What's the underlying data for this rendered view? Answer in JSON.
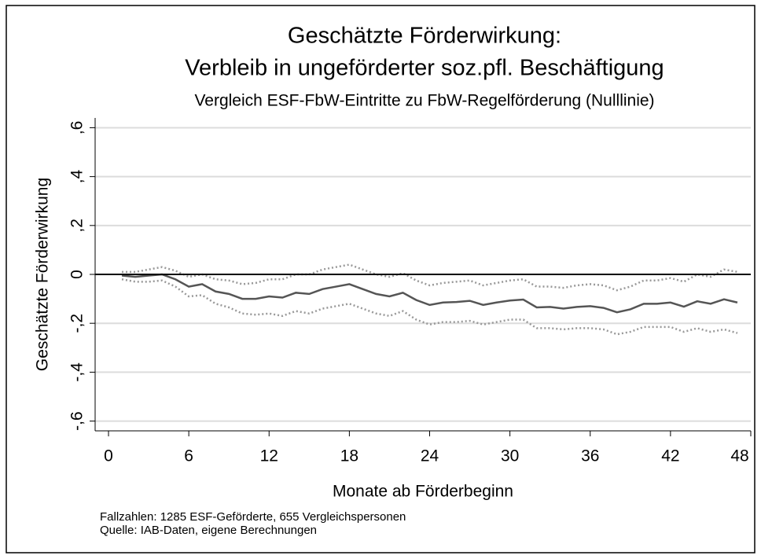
{
  "chart_data": {
    "type": "line",
    "title": [
      "Geschätzte Förderwirkung:",
      "Verbleib in ungeförderter soz.pfl. Beschäftigung"
    ],
    "subtitle": "Vergleich ESF-FbW-Eintritte zu FbW-Regelförderung (Nulllinie)",
    "x_label": "Monate ab Förderbeginn",
    "y_label": "Geschätzte Förderwirkung",
    "notes": [
      "Fallzahlen: 1285 ESF-Geförderte, 655 Vergleichspersonen",
      "Quelle: IAB-Daten, eigene Berechnungen"
    ],
    "x": [
      1,
      2,
      3,
      4,
      5,
      6,
      7,
      8,
      9,
      10,
      11,
      12,
      13,
      14,
      15,
      16,
      17,
      18,
      19,
      20,
      21,
      22,
      23,
      24,
      25,
      26,
      27,
      28,
      29,
      30,
      31,
      32,
      33,
      34,
      35,
      36,
      37,
      38,
      39,
      40,
      41,
      42,
      43,
      44,
      45,
      46,
      47
    ],
    "series": [
      {
        "color": "#555555",
        "dashed": false,
        "values": [
          -0.005,
          -0.01,
          -0.005,
          0,
          -0.02,
          -0.05,
          -0.04,
          -0.07,
          -0.08,
          -0.1,
          -0.1,
          -0.09,
          -0.095,
          -0.075,
          -0.08,
          -0.06,
          -0.05,
          -0.04,
          -0.06,
          -0.08,
          -0.09,
          -0.075,
          -0.105,
          -0.125,
          -0.115,
          -0.113,
          -0.108,
          -0.125,
          -0.115,
          -0.107,
          -0.103,
          -0.135,
          -0.133,
          -0.14,
          -0.133,
          -0.13,
          -0.137,
          -0.155,
          -0.143,
          -0.12,
          -0.12,
          -0.115,
          -0.132,
          -0.11,
          -0.12,
          -0.102,
          -0.115
        ]
      },
      {
        "color": "#999999",
        "dashed": true,
        "values": [
          0.01,
          0.01,
          0.02,
          0.03,
          0.015,
          -0.01,
          0,
          -0.02,
          -0.025,
          -0.04,
          -0.035,
          -0.02,
          -0.02,
          0,
          0,
          0.02,
          0.03,
          0.04,
          0.02,
          0,
          -0.01,
          0.005,
          -0.025,
          -0.045,
          -0.035,
          -0.03,
          -0.025,
          -0.045,
          -0.035,
          -0.025,
          -0.02,
          -0.05,
          -0.05,
          -0.055,
          -0.045,
          -0.04,
          -0.045,
          -0.065,
          -0.05,
          -0.025,
          -0.025,
          -0.015,
          -0.03,
          0,
          -0.01,
          0.02,
          0.01
        ]
      },
      {
        "color": "#999999",
        "dashed": true,
        "values": [
          -0.02,
          -0.03,
          -0.03,
          -0.025,
          -0.05,
          -0.09,
          -0.085,
          -0.12,
          -0.135,
          -0.16,
          -0.165,
          -0.16,
          -0.17,
          -0.15,
          -0.16,
          -0.14,
          -0.13,
          -0.12,
          -0.14,
          -0.16,
          -0.17,
          -0.15,
          -0.185,
          -0.205,
          -0.195,
          -0.195,
          -0.19,
          -0.205,
          -0.195,
          -0.185,
          -0.185,
          -0.22,
          -0.22,
          -0.225,
          -0.22,
          -0.22,
          -0.225,
          -0.245,
          -0.235,
          -0.215,
          -0.215,
          -0.215,
          -0.235,
          -0.22,
          -0.235,
          -0.225,
          -0.24
        ]
      }
    ],
    "reference_line": 0,
    "xlim": [
      -1,
      48
    ],
    "xticks": [
      0,
      6,
      12,
      18,
      24,
      30,
      36,
      42,
      48
    ],
    "ylim": [
      -0.64,
      0.64
    ],
    "yticks": [
      {
        "value": -0.6,
        "label": "-,6"
      },
      {
        "value": -0.4,
        "label": "-,4"
      },
      {
        "value": -0.2,
        "label": "-,2"
      },
      0,
      {
        "value": 0.2,
        "label": ",2"
      },
      {
        "value": 0.4,
        "label": ",4"
      },
      {
        "value": 0.6,
        "label": ",6"
      }
    ],
    "grid": true
  }
}
